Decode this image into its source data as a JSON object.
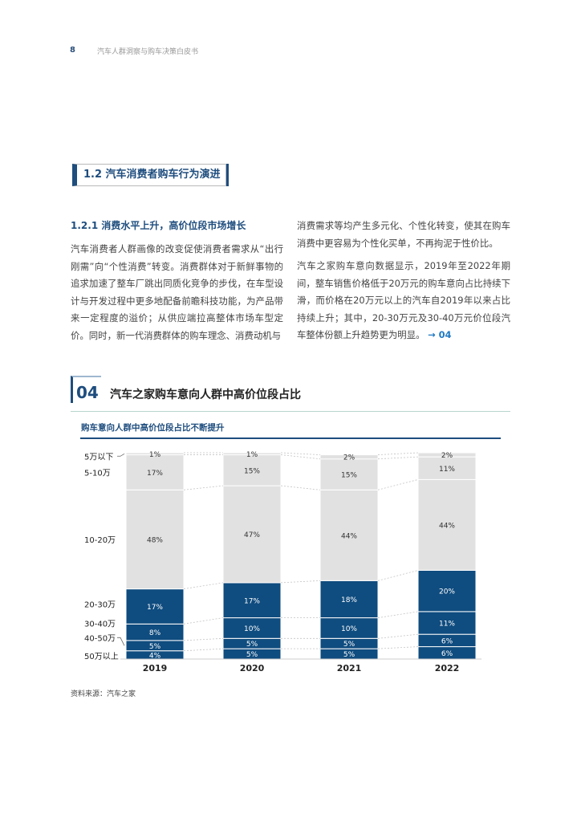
{
  "header": {
    "page_number": "8",
    "doc_title": "汽车人群洞察与购车决策白皮书"
  },
  "section": {
    "title": "1.2 汽车消费者购车行为演进"
  },
  "subsection": {
    "title": "1.2.1 消费水平上升，高价位段市场增长"
  },
  "body": {
    "left": "汽车消费者人群画像的改变促使消费者需求从“出行刚需”向“个性消费”转变。消费群体对于新鲜事物的追求加速了整车厂跳出同质化竞争的步伐，在车型设计与开发过程中更多地配备前瞻科技功能，为产品带来一定程度的溢价；从供应端拉高整体市场车型定价。同时，新一代消费群体的购车理念、消费动机与",
    "right_p1": "消费需求等均产生多元化、个性化转变，使其在购车消费中更容易为个性化买单，不再拘泥于性价比。",
    "right_p2": "汽车之家购车意向数据显示，2019年至2022年期间，整车销售价格低于20万元的购车意向占比持续下滑，而价格在20万元以上的汽车自2019年以来占比持续上升；其中，20-30万元及30-40万元价位段汽车整体份额上升趋势更为明显。",
    "right_p2_ref": "→ 04"
  },
  "figure": {
    "number": "04",
    "title": "汽车之家购车意向人群中高价位段占比",
    "subtitle": "购车意向人群中高价位段占比不断提升",
    "source": "资料来源：汽车之家"
  },
  "colors": {
    "dark_blue": "#0f4c7f",
    "light_gray": "#e1e1e1",
    "accent": "#1e4d7e"
  },
  "chart_data": {
    "type": "bar",
    "stacked": true,
    "categories": [
      "2019",
      "2020",
      "2021",
      "2022"
    ],
    "series": [
      {
        "name": "50万以上",
        "values": [
          4,
          5,
          5,
          6
        ],
        "labels": [
          "4%",
          "5%",
          "5%",
          "6%"
        ],
        "color": "#0f4c7f"
      },
      {
        "name": "40-50万",
        "values": [
          5,
          5,
          5,
          6
        ],
        "labels": [
          "5%",
          "5%",
          "5%",
          "6%"
        ],
        "color": "#0f4c7f"
      },
      {
        "name": "30-40万",
        "values": [
          8,
          10,
          10,
          11
        ],
        "labels": [
          "8%",
          "10%",
          "10%",
          "11%"
        ],
        "color": "#0f4c7f"
      },
      {
        "name": "20-30万",
        "values": [
          17,
          17,
          18,
          20
        ],
        "labels": [
          "17%",
          "17%",
          "18%",
          "20%"
        ],
        "color": "#0f4c7f"
      },
      {
        "name": "10-20万",
        "values": [
          48,
          47,
          44,
          44
        ],
        "labels": [
          "48%",
          "47%",
          "44%",
          "44%"
        ],
        "color": "#e1e1e1"
      },
      {
        "name": "5-10万",
        "values": [
          17,
          15,
          15,
          11
        ],
        "labels": [
          "17%",
          "15%",
          "15%",
          "11%"
        ],
        "color": "#e1e1e1"
      },
      {
        "name": "5万以下",
        "values": [
          1,
          1,
          2,
          2
        ],
        "labels": [
          "1%",
          "1%",
          "2%",
          "2%"
        ],
        "color": "#e1e1e1"
      }
    ],
    "ylim": [
      0,
      100
    ]
  }
}
